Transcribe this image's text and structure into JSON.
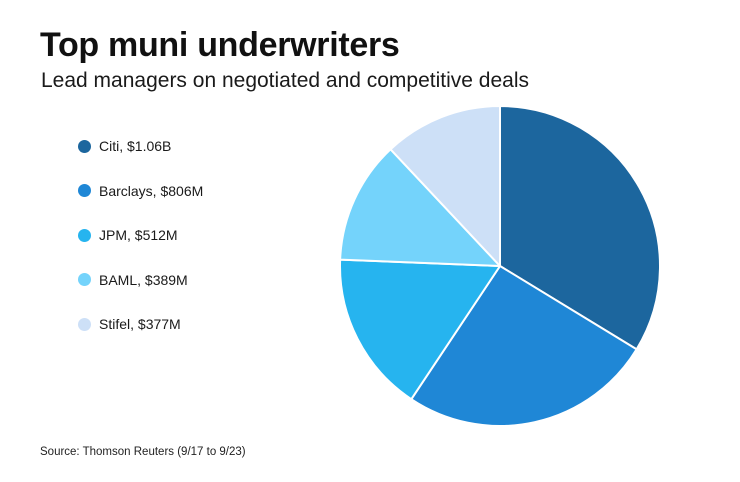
{
  "chart_data": {
    "type": "pie",
    "title": "Top muni underwriters",
    "subtitle": "Lead managers on negotiated and competitive deals",
    "source": "Source: Thomson Reuters (9/17 to 9/23)",
    "legend_position": "left",
    "categories": [
      "Citi",
      "Barclays",
      "JPM",
      "BAML",
      "Stifel"
    ],
    "values": [
      1060,
      806,
      512,
      389,
      377
    ],
    "unit": "$M",
    "legend_labels": [
      "Citi, $1.06B",
      "Barclays, $806M",
      "JPM, $512M",
      "BAML, $389M",
      "Stifel, $377M"
    ],
    "colors": [
      "#1c669e",
      "#1f87d6",
      "#26b4ef",
      "#74d3fb",
      "#cde0f7"
    ]
  }
}
